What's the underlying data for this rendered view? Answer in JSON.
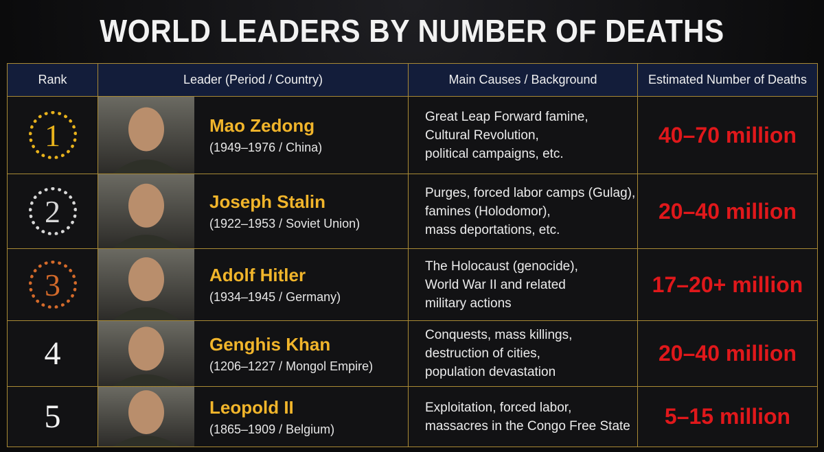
{
  "header": {
    "title": "WORLD LEADERS BY NUMBER OF DEATHS"
  },
  "table": {
    "columns": [
      "Rank",
      "Leader (Period / Country)",
      "Main Causes / Background",
      "Estimated Number of Deaths"
    ],
    "rows": [
      {
        "rank": 1,
        "name": "Mao Zedong",
        "period": "(1949–1976 / China)",
        "causes": [
          "Great Leap Forward famine,",
          "Cultural Revolution,",
          "political campaigns, etc."
        ],
        "deaths": "40–70 million"
      },
      {
        "rank": 2,
        "name": "Joseph Stalin",
        "period": "(1922–1953 / Soviet Union)",
        "causes": [
          "Purges, forced labor camps (Gulag),",
          "famines (Holodomor),",
          "mass deportations, etc."
        ],
        "deaths": "20–40 million"
      },
      {
        "rank": 3,
        "name": "Adolf Hitler",
        "period": "(1934–1945 / Germany)",
        "causes": [
          "The Holocaust (genocide),",
          "World War II and related",
          "military actions"
        ],
        "deaths": "17–20+ million"
      },
      {
        "rank": 4,
        "name": "Genghis Khan",
        "period": "(1206–1227 / Mongol Empire)",
        "causes": [
          "Conquests, mass killings,",
          "destruction of cities,",
          "population devastation"
        ],
        "deaths": "20–40 million"
      },
      {
        "rank": 5,
        "name": "Leopold II",
        "period": "(1865–1909 / Belgium)",
        "causes": [
          "Exploitation, forced labor,",
          "massacres in the Congo Free State"
        ],
        "deaths": "5–15 million"
      }
    ]
  }
}
